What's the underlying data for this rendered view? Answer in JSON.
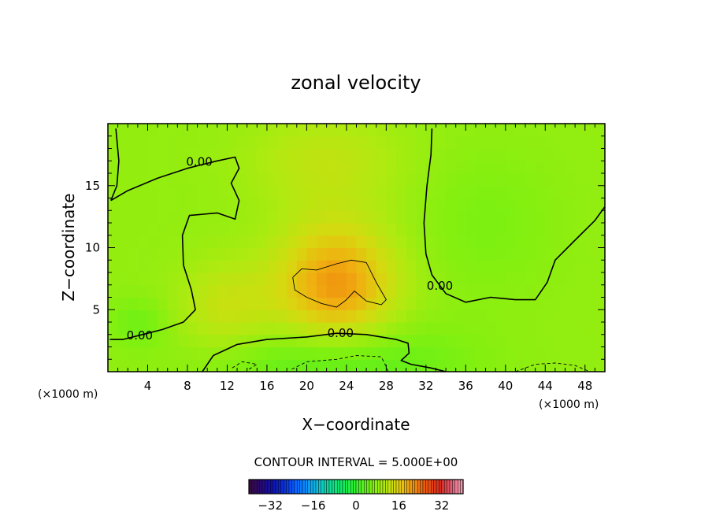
{
  "chart_data": {
    "type": "heatmap",
    "title": "zonal velocity",
    "xlabel": "X−coordinate",
    "ylabel": "Z−coordinate",
    "x_unit_left": "(×1000 m)",
    "x_unit_right": "(×1000 m)",
    "xlim": [
      0,
      50
    ],
    "ylim": [
      0,
      20
    ],
    "x_ticks": [
      4,
      8,
      12,
      16,
      20,
      24,
      28,
      32,
      36,
      40,
      44,
      48
    ],
    "y_ticks": [
      5,
      10,
      15
    ],
    "contour_interval_text": "CONTOUR INTERVAL = 5.000E+00",
    "contour_labels": [
      {
        "text": "0.00",
        "x": 9.2,
        "y": 16.6
      },
      {
        "text": "0.00",
        "x": 3.2,
        "y": 2.6
      },
      {
        "text": "0.00",
        "x": 23.4,
        "y": 2.8
      },
      {
        "text": "0.00",
        "x": 33.4,
        "y": 6.6
      }
    ],
    "zero_contours": [
      [
        [
          0.3,
          13.8
        ],
        [
          2,
          14.6
        ],
        [
          5,
          15.6
        ],
        [
          8,
          16.4
        ],
        [
          11,
          17.0
        ],
        [
          12.8,
          17.3
        ],
        [
          13.2,
          16.4
        ],
        [
          12.4,
          15.2
        ],
        [
          13.2,
          13.8
        ],
        [
          12.8,
          12.3
        ],
        [
          11.0,
          12.8
        ],
        [
          8.2,
          12.6
        ],
        [
          7.5,
          11.0
        ],
        [
          7.6,
          8.6
        ],
        [
          8.4,
          6.6
        ],
        [
          8.8,
          5.0
        ],
        [
          7.6,
          4.0
        ],
        [
          5.5,
          3.4
        ],
        [
          3.5,
          3.0
        ],
        [
          1.5,
          2.6
        ],
        [
          0.2,
          2.6
        ]
      ],
      [
        [
          9.5,
          0.0
        ],
        [
          10.6,
          1.3
        ],
        [
          13,
          2.2
        ],
        [
          16,
          2.6
        ],
        [
          20,
          2.8
        ],
        [
          23,
          3.1
        ],
        [
          26,
          3.0
        ],
        [
          29,
          2.6
        ],
        [
          30.2,
          2.3
        ],
        [
          30.3,
          1.5
        ],
        [
          29.5,
          0.9
        ],
        [
          30.5,
          0.6
        ],
        [
          32.5,
          0.3
        ],
        [
          34,
          0.0
        ]
      ],
      [
        [
          32.6,
          19.6
        ],
        [
          32.5,
          17.5
        ],
        [
          32.1,
          15.0
        ],
        [
          31.8,
          12.0
        ],
        [
          32.0,
          9.5
        ],
        [
          32.6,
          7.8
        ],
        [
          34.0,
          6.3
        ],
        [
          36.0,
          5.6
        ],
        [
          38.5,
          6.0
        ],
        [
          41.0,
          5.8
        ],
        [
          43.0,
          5.8
        ],
        [
          44.2,
          7.2
        ],
        [
          45.0,
          9.0
        ],
        [
          47.0,
          10.6
        ],
        [
          49.0,
          12.2
        ],
        [
          50.0,
          13.3
        ]
      ],
      [
        [
          0.8,
          19.6
        ],
        [
          1.1,
          17.0
        ],
        [
          0.9,
          15.0
        ],
        [
          0.3,
          13.8
        ]
      ]
    ],
    "thin_contours": [
      [
        [
          18.6,
          7.6
        ],
        [
          19.5,
          8.3
        ],
        [
          21.0,
          8.2
        ],
        [
          23.0,
          8.7
        ],
        [
          24.5,
          9.0
        ],
        [
          26.0,
          8.8
        ],
        [
          27.0,
          7.2
        ],
        [
          28.0,
          5.8
        ],
        [
          27.5,
          5.4
        ],
        [
          26.0,
          5.7
        ],
        [
          24.8,
          6.5
        ],
        [
          24.0,
          5.8
        ],
        [
          23.0,
          5.2
        ],
        [
          21.5,
          5.5
        ],
        [
          20.0,
          6.0
        ],
        [
          18.8,
          6.6
        ],
        [
          18.6,
          7.6
        ]
      ]
    ],
    "dashed_contours": [
      [
        [
          12.5,
          0.3
        ],
        [
          13.5,
          0.8
        ],
        [
          15.0,
          0.6
        ],
        [
          14.2,
          0.2
        ]
      ],
      [
        [
          18.5,
          0.2
        ],
        [
          20.0,
          0.8
        ],
        [
          23.0,
          1.0
        ],
        [
          25.0,
          1.3
        ],
        [
          27.5,
          1.2
        ],
        [
          28.0,
          0.4
        ],
        [
          28.2,
          0.0
        ]
      ],
      [
        [
          41.0,
          0.0
        ],
        [
          43.0,
          0.6
        ],
        [
          45.0,
          0.7
        ],
        [
          47.0,
          0.5
        ],
        [
          48.5,
          0.0
        ]
      ]
    ],
    "value_field": {
      "background": 8,
      "features": [
        {
          "x": 23,
          "y": 7,
          "rx": 6,
          "ry": 5,
          "v": 13
        },
        {
          "x": 23,
          "y": 0.5,
          "rx": 12,
          "ry": 3.5,
          "v": -6
        },
        {
          "x": 3,
          "y": 4,
          "rx": 3,
          "ry": 2,
          "v": -3
        },
        {
          "x": 38,
          "y": 12,
          "rx": 7,
          "ry": 6,
          "v": -2
        },
        {
          "x": 22,
          "y": 17,
          "rx": 8,
          "ry": 4,
          "v": 4
        },
        {
          "x": 12,
          "y": 5,
          "rx": 5,
          "ry": 4,
          "v": 5
        }
      ]
    },
    "colorbar": {
      "range": [
        -40,
        40
      ],
      "ticks": [
        -32,
        -16,
        0,
        16,
        32
      ],
      "tick_labels": [
        "−32",
        "−16",
        "0",
        "16",
        "32"
      ],
      "colors": [
        "#3a0a3e",
        "#2a0a6e",
        "#1010a8",
        "#0a2ad8",
        "#0a5aff",
        "#0a8cff",
        "#10bce0",
        "#10d8a0",
        "#10e870",
        "#20f040",
        "#50f020",
        "#80f010",
        "#b0ea10",
        "#d8d810",
        "#f0b010",
        "#f07a10",
        "#e84a10",
        "#d82a20",
        "#e0607a",
        "#f0a0b0"
      ]
    }
  }
}
